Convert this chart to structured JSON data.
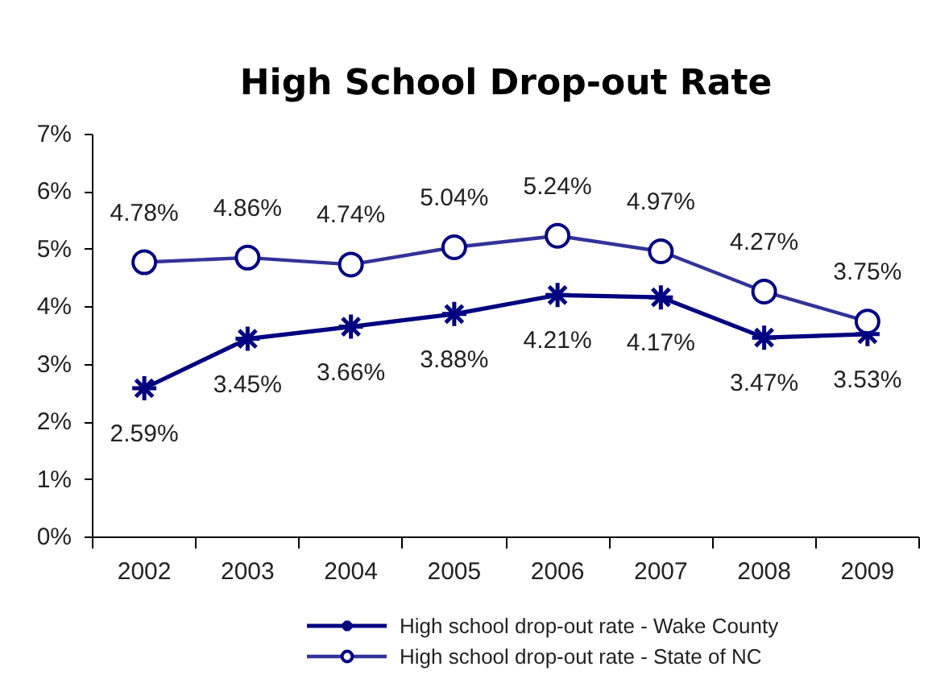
{
  "chart_data": {
    "type": "line",
    "title": "High School Drop-out Rate",
    "categories": [
      "2002",
      "2003",
      "2004",
      "2005",
      "2006",
      "2007",
      "2008",
      "2009"
    ],
    "series": [
      {
        "name": "High school drop-out rate - Wake County",
        "color": "#000080",
        "marker": "cross",
        "values": [
          2.59,
          3.45,
          3.66,
          3.88,
          4.21,
          4.17,
          3.47,
          3.53
        ],
        "value_labels": [
          "2.59%",
          "3.45%",
          "3.66%",
          "3.88%",
          "4.21%",
          "4.17%",
          "3.47%",
          "3.53%"
        ]
      },
      {
        "name": "High school drop-out rate - State of NC",
        "color": "#333399",
        "marker": "circle",
        "values": [
          4.78,
          4.86,
          4.74,
          5.04,
          5.24,
          4.97,
          4.27,
          3.75
        ],
        "value_labels": [
          "4.78%",
          "4.86%",
          "4.74%",
          "5.04%",
          "5.24%",
          "4.97%",
          "4.27%",
          "3.75%"
        ]
      }
    ],
    "ylim": [
      0,
      7
    ],
    "yticks": [
      {
        "value": 0,
        "label": "0%"
      },
      {
        "value": 1,
        "label": "1%"
      },
      {
        "value": 2,
        "label": "2%"
      },
      {
        "value": 3,
        "label": "3%"
      },
      {
        "value": 4,
        "label": "4%"
      },
      {
        "value": 5,
        "label": "5%"
      },
      {
        "value": 6,
        "label": "6%"
      },
      {
        "value": 7,
        "label": "7%"
      }
    ],
    "grid": false,
    "legend": "bottom"
  }
}
